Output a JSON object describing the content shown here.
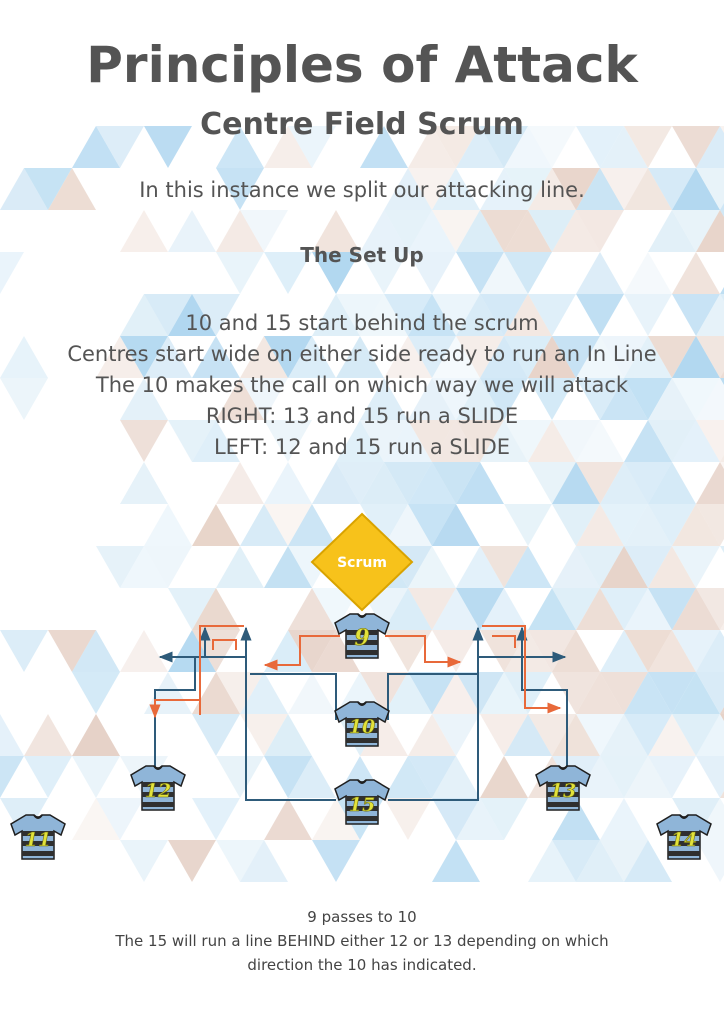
{
  "title": "Principles of Attack",
  "subtitle": "Centre Field Scrum",
  "intro": "In this instance we split our attacking line.",
  "setup_heading": "The Set Up",
  "setup_lines": [
    "10 and 15 start behind the scrum",
    "Centres start wide on either side ready to run an In Line",
    "The 10 makes the call on which way we will attack",
    "RIGHT: 13 and 15 run a SLIDE",
    "LEFT: 12 and 15 run a SLIDE"
  ],
  "scrum_label": "Scrum",
  "players": [
    "9",
    "10",
    "12",
    "15",
    "13",
    "11",
    "14"
  ],
  "footer_lines": [
    "9 passes to 10",
    "The 15 will run a line BEHIND either 12 or 13 depending on which",
    "direction the 10 has indicated."
  ],
  "colors": {
    "heading": "#545454",
    "blue_line": "#2e5b7a",
    "orange_line": "#e8693a",
    "scrum_fill": "#f7c21b",
    "jersey_blue": "#8fb5d8",
    "jersey_dark": "#2f2f2f",
    "number_yellow": "#e2e23a"
  }
}
